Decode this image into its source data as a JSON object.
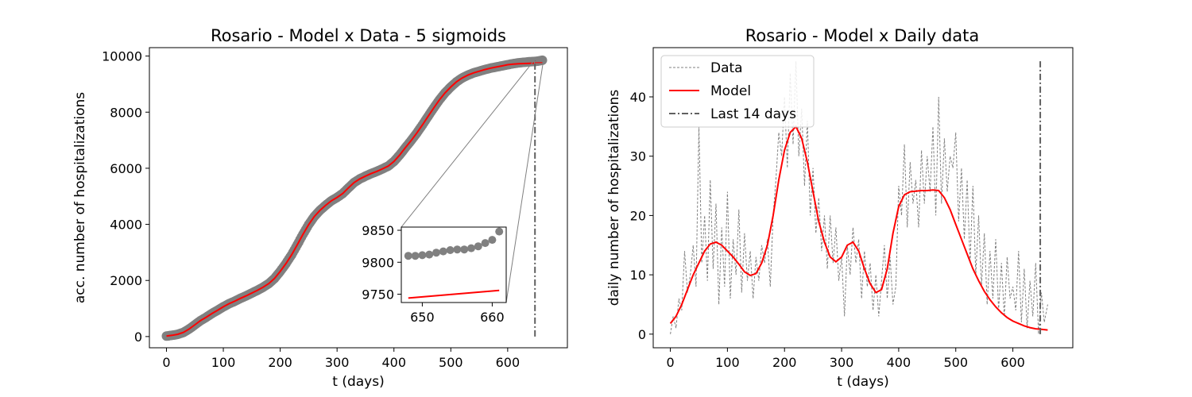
{
  "chart_data": [
    {
      "type": "scatter",
      "title": "Rosario - Model x Data - 5 sigmoids",
      "xlabel": "t (days)",
      "ylabel": "acc. number of hospitalizations",
      "xlim": [
        -30,
        705
      ],
      "ylim": [
        -400,
        10300
      ],
      "xticks": [
        0,
        100,
        200,
        300,
        400,
        500,
        600
      ],
      "yticks": [
        0,
        2000,
        4000,
        6000,
        8000,
        10000
      ],
      "grid": false,
      "series": [
        {
          "name": "Data",
          "color": "#808080",
          "style": "markers",
          "x": [
            0,
            10,
            20,
            30,
            40,
            50,
            60,
            70,
            80,
            90,
            100,
            110,
            120,
            130,
            140,
            150,
            160,
            170,
            180,
            190,
            200,
            210,
            220,
            230,
            240,
            250,
            260,
            270,
            280,
            290,
            300,
            310,
            320,
            330,
            340,
            350,
            360,
            370,
            380,
            390,
            400,
            410,
            420,
            430,
            440,
            450,
            460,
            470,
            480,
            490,
            500,
            510,
            520,
            530,
            540,
            550,
            560,
            570,
            580,
            590,
            600,
            610,
            620,
            630,
            640,
            650,
            661
          ],
          "y": [
            15,
            45,
            80,
            150,
            270,
            420,
            570,
            690,
            820,
            940,
            1060,
            1170,
            1260,
            1360,
            1450,
            1550,
            1650,
            1760,
            1890,
            2070,
            2320,
            2600,
            2910,
            3270,
            3640,
            3990,
            4280,
            4500,
            4680,
            4840,
            4960,
            5100,
            5300,
            5490,
            5620,
            5720,
            5810,
            5890,
            5980,
            6080,
            6240,
            6470,
            6730,
            6980,
            7250,
            7540,
            7850,
            8150,
            8440,
            8690,
            8900,
            9080,
            9220,
            9320,
            9400,
            9460,
            9520,
            9570,
            9610,
            9650,
            9690,
            9730,
            9760,
            9780,
            9800,
            9810,
            9850
          ]
        },
        {
          "name": "Model",
          "color": "#ff0000",
          "style": "line",
          "x": [
            0,
            10,
            20,
            30,
            40,
            50,
            60,
            70,
            80,
            90,
            100,
            110,
            120,
            130,
            140,
            150,
            160,
            170,
            180,
            190,
            200,
            210,
            220,
            230,
            240,
            250,
            260,
            270,
            280,
            290,
            300,
            310,
            320,
            330,
            340,
            350,
            360,
            370,
            380,
            390,
            400,
            410,
            420,
            430,
            440,
            450,
            460,
            470,
            480,
            490,
            500,
            510,
            520,
            530,
            540,
            550,
            560,
            570,
            580,
            590,
            600,
            610,
            620,
            630,
            640,
            650,
            661
          ],
          "y": [
            15,
            45,
            80,
            150,
            270,
            420,
            570,
            690,
            820,
            940,
            1060,
            1170,
            1260,
            1360,
            1450,
            1550,
            1650,
            1760,
            1890,
            2070,
            2320,
            2600,
            2910,
            3270,
            3640,
            3990,
            4280,
            4500,
            4680,
            4840,
            4960,
            5100,
            5300,
            5490,
            5620,
            5720,
            5810,
            5890,
            5980,
            6080,
            6240,
            6470,
            6730,
            6980,
            7250,
            7540,
            7850,
            8150,
            8440,
            8690,
            8900,
            9080,
            9220,
            9320,
            9400,
            9460,
            9520,
            9570,
            9610,
            9650,
            9690,
            9710,
            9725,
            9735,
            9742,
            9750,
            9757
          ]
        }
      ],
      "vline": {
        "x": 648,
        "y": [
          0,
          9850
        ],
        "color": "#606060",
        "style": "dashdot"
      },
      "inset": {
        "xlim": [
          647,
          662
        ],
        "ylim": [
          9737,
          9855
        ],
        "xticks": [
          650,
          660
        ],
        "yticks": [
          9750,
          9800,
          9850
        ],
        "data": {
          "x": [
            648,
            649,
            650,
            651,
            652,
            653,
            654,
            655,
            656,
            657,
            658,
            659,
            660,
            661
          ],
          "y": [
            9810,
            9810,
            9811,
            9812,
            9815,
            9817,
            9819,
            9820,
            9820,
            9822,
            9825,
            9830,
            9835,
            9848
          ]
        },
        "model": {
          "x": [
            648,
            661
          ],
          "y": [
            9744,
            9756
          ]
        }
      }
    },
    {
      "type": "line",
      "title": "Rosario - Model x Daily data",
      "xlabel": "t (days)",
      "ylabel": "daily number of hospitalizations",
      "xlim": [
        -30,
        705
      ],
      "ylim": [
        -2.3,
        48.3
      ],
      "xticks": [
        0,
        100,
        200,
        300,
        400,
        500,
        600
      ],
      "yticks": [
        0,
        10,
        20,
        30,
        40
      ],
      "grid": false,
      "legend": {
        "placement": "top-left",
        "entries": [
          "Data",
          "Model",
          "Last 14 days"
        ]
      },
      "series": [
        {
          "name": "Data",
          "color": "#808080",
          "style": "dashed",
          "x": [
            0,
            5,
            10,
            15,
            20,
            25,
            30,
            35,
            40,
            45,
            50,
            55,
            60,
            65,
            70,
            75,
            80,
            85,
            90,
            95,
            100,
            105,
            110,
            115,
            120,
            125,
            130,
            135,
            140,
            145,
            150,
            155,
            160,
            165,
            170,
            175,
            180,
            185,
            190,
            195,
            200,
            205,
            210,
            215,
            220,
            225,
            230,
            235,
            240,
            245,
            250,
            255,
            260,
            265,
            270,
            275,
            280,
            285,
            290,
            295,
            300,
            305,
            310,
            315,
            320,
            325,
            330,
            335,
            340,
            345,
            350,
            355,
            360,
            365,
            370,
            375,
            380,
            385,
            390,
            395,
            400,
            405,
            410,
            415,
            420,
            425,
            430,
            435,
            440,
            445,
            450,
            455,
            460,
            465,
            470,
            475,
            480,
            485,
            490,
            495,
            500,
            505,
            510,
            515,
            520,
            525,
            530,
            535,
            540,
            545,
            550,
            555,
            560,
            565,
            570,
            575,
            580,
            585,
            590,
            595,
            600,
            605,
            610,
            615,
            620,
            625,
            630,
            635,
            640,
            645,
            650,
            655,
            661
          ],
          "y": [
            0,
            3,
            1,
            6,
            4,
            14,
            7,
            10,
            15,
            8,
            35,
            12,
            20,
            9,
            26,
            11,
            22,
            5,
            18,
            8,
            24,
            6,
            16,
            10,
            21,
            7,
            17,
            9,
            14,
            6,
            13,
            9,
            15,
            12,
            16,
            8,
            20,
            26,
            34,
            30,
            40,
            28,
            44,
            32,
            46,
            30,
            38,
            25,
            36,
            20,
            28,
            17,
            23,
            14,
            20,
            11,
            20,
            12,
            18,
            9,
            13,
            3,
            15,
            10,
            18,
            12,
            16,
            6,
            14,
            8,
            12,
            4,
            10,
            3,
            9,
            15,
            6,
            13,
            5,
            8,
            25,
            20,
            32,
            18,
            29,
            22,
            26,
            18,
            31,
            22,
            30,
            24,
            35,
            20,
            40,
            22,
            33,
            24,
            30,
            28,
            34,
            19,
            28,
            16,
            26,
            12,
            25,
            10,
            20,
            8,
            17,
            5,
            14,
            6,
            16,
            4,
            12,
            3,
            13,
            6,
            8,
            4,
            14,
            2,
            11,
            1,
            9,
            3,
            12,
            0,
            7,
            2,
            5
          ]
        },
        {
          "name": "Model",
          "color": "#ff0000",
          "style": "solid",
          "x": [
            0,
            10,
            20,
            30,
            40,
            50,
            60,
            70,
            80,
            90,
            100,
            110,
            120,
            130,
            140,
            150,
            160,
            170,
            180,
            190,
            200,
            210,
            220,
            230,
            240,
            250,
            260,
            270,
            280,
            290,
            300,
            310,
            320,
            330,
            340,
            350,
            360,
            370,
            380,
            390,
            400,
            410,
            420,
            430,
            440,
            450,
            460,
            470,
            480,
            490,
            500,
            510,
            520,
            530,
            540,
            550,
            560,
            570,
            580,
            590,
            600,
            610,
            620,
            630,
            640,
            650,
            661
          ],
          "y": [
            1.8,
            3,
            5,
            7.5,
            10,
            12,
            14,
            15.2,
            15.5,
            15,
            14,
            13,
            11.8,
            10.5,
            9.9,
            10.2,
            12,
            15,
            20,
            26,
            31,
            34,
            35,
            33,
            29,
            24,
            19,
            15.5,
            13,
            12.2,
            13,
            15,
            15.5,
            14,
            11,
            8.5,
            7,
            7.5,
            11,
            17,
            21.5,
            23.5,
            24,
            24.1,
            24.2,
            24.2,
            24.3,
            24.2,
            23,
            21,
            18.5,
            16,
            13.5,
            11,
            9,
            7.2,
            5.8,
            4.6,
            3.6,
            2.8,
            2.2,
            1.8,
            1.4,
            1.1,
            0.9,
            0.8,
            0.7
          ]
        },
        {
          "name": "Last 14 days",
          "color": "#606060",
          "style": "dashdot",
          "x": [
            648,
            648
          ],
          "y": [
            0,
            46
          ]
        }
      ]
    }
  ]
}
